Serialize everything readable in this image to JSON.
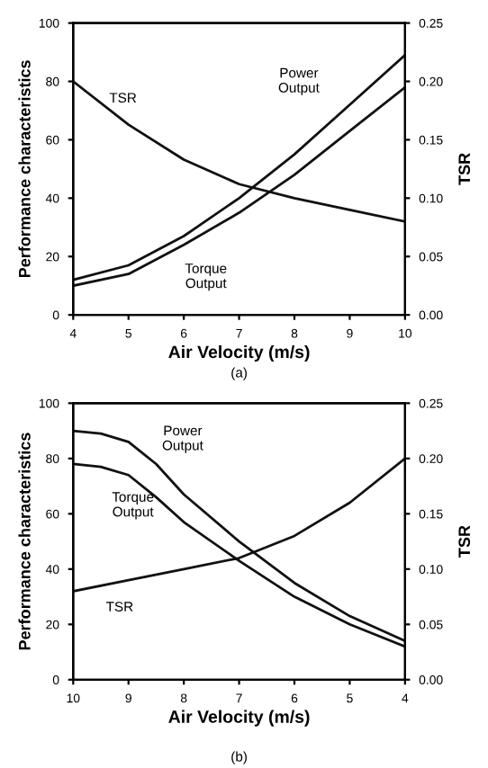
{
  "chart_data": [
    {
      "type": "line",
      "xlabel": "Air Velocity (m/s)",
      "ylabel": "Performance characteristics",
      "y2label": "TSR",
      "x": [
        4,
        5,
        6,
        7,
        8,
        9,
        10
      ],
      "xlim": [
        4,
        10
      ],
      "xticks": [
        4,
        5,
        6,
        7,
        8,
        9,
        10
      ],
      "ylim": [
        0,
        100
      ],
      "yticks": [
        0,
        20,
        40,
        60,
        80,
        100
      ],
      "y2lim": [
        0,
        0.25
      ],
      "y2ticks": [
        {
          "value": 0,
          "label": "0.00"
        },
        0.05,
        {
          "value": 0.1,
          "label": "0.10"
        },
        0.15,
        {
          "value": 0.2,
          "label": "0.20"
        },
        0.25
      ],
      "grid": false,
      "legend": false,
      "series": [
        {
          "color": "#111111",
          "values": [
            12,
            17,
            27,
            40,
            55,
            72,
            89
          ]
        },
        {
          "color": "#111111",
          "values": [
            10,
            14,
            24,
            35,
            48,
            63,
            78
          ]
        },
        {
          "color": "#111111",
          "axis": "y2",
          "values": [
            0.2,
            0.163,
            0.133,
            0.112,
            0.1,
            0.09,
            0.08
          ]
        }
      ],
      "annotations": [
        "TSR",
        "Power\nOutput",
        "Torque\nOutput",
        "(a)"
      ]
    },
    {
      "type": "line",
      "xlabel": "Air Velocity (m/s)",
      "ylabel": "Performance characteristics",
      "y2label": "TSR",
      "x": [
        10,
        9.5,
        9,
        8.5,
        8,
        7,
        6,
        5,
        4
      ],
      "xlim": [
        10,
        4
      ],
      "xticks": [
        10,
        9,
        8,
        7,
        6,
        5,
        4
      ],
      "ylim": [
        0,
        100
      ],
      "yticks": [
        0,
        20,
        40,
        60,
        80,
        100
      ],
      "y2lim": [
        0,
        0.25
      ],
      "y2ticks": [
        {
          "value": 0,
          "label": "0.00"
        },
        0.05,
        {
          "value": 0.1,
          "label": "0.10"
        },
        0.15,
        {
          "value": 0.2,
          "label": "0.20"
        },
        0.25
      ],
      "grid": false,
      "legend": false,
      "series": [
        {
          "color": "#111111",
          "values": [
            90,
            89,
            86,
            78,
            67,
            50,
            35,
            23,
            14
          ]
        },
        {
          "color": "#111111",
          "values": [
            78,
            77,
            74,
            66,
            57,
            43,
            30,
            20,
            12
          ]
        },
        {
          "color": "#111111",
          "axis": "y2",
          "x": [
            10,
            9,
            8,
            7,
            6,
            5,
            4
          ],
          "values": [
            0.08,
            0.09,
            0.1,
            0.11,
            0.13,
            0.16,
            0.2
          ]
        }
      ],
      "annotations": [
        "Power\nOutput",
        "Torque\nOutput",
        "TSR",
        "(b)"
      ]
    }
  ]
}
